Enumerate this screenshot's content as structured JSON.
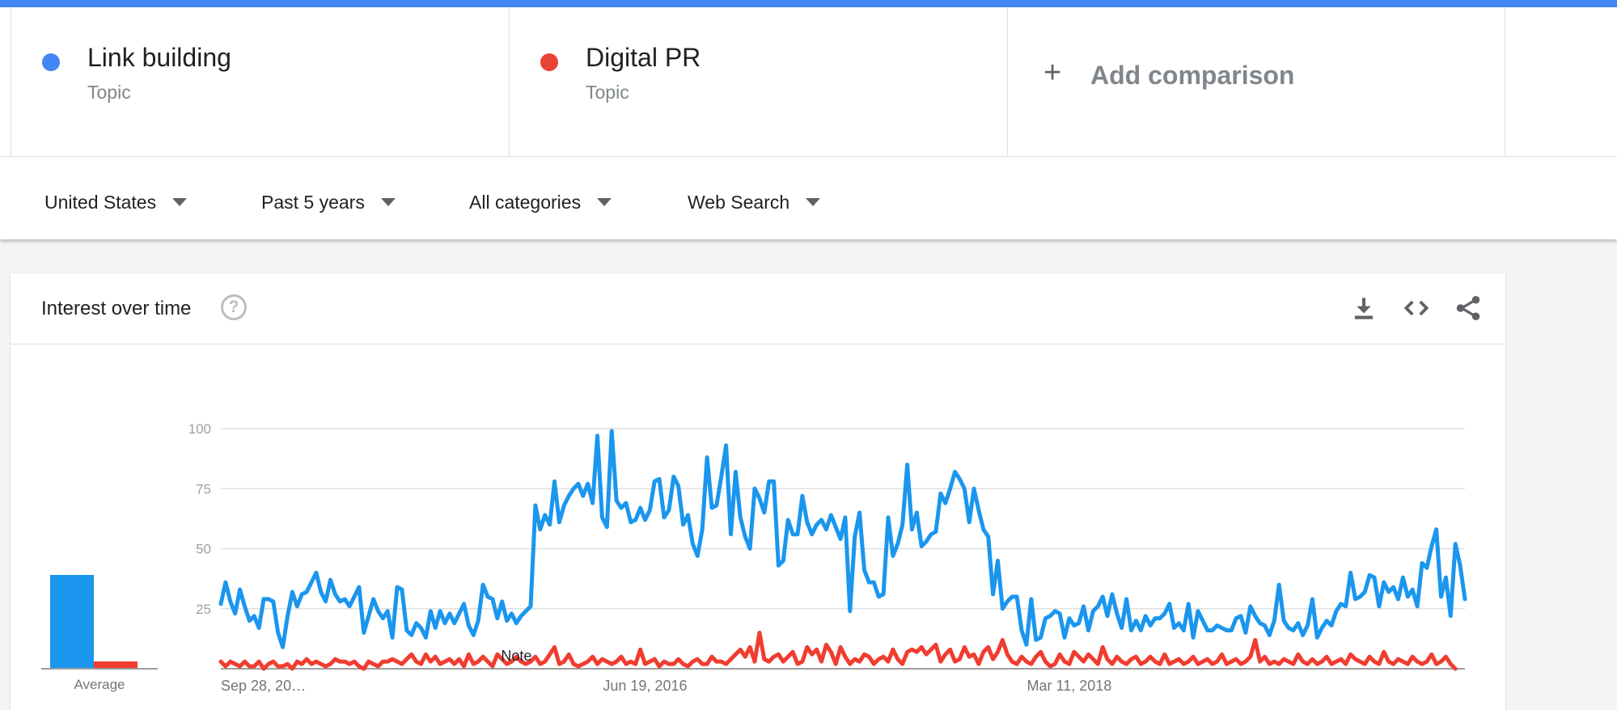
{
  "terms": [
    {
      "name": "Link building",
      "kind": "Topic",
      "color": "#4285f4"
    },
    {
      "name": "Digital PR",
      "kind": "Topic",
      "color": "#ea4335"
    }
  ],
  "add_comparison": {
    "icon": "plus-icon",
    "label": "Add comparison"
  },
  "filters": [
    {
      "label": "United States",
      "icon": "caret-down-icon"
    },
    {
      "label": "Past 5 years",
      "icon": "caret-down-icon"
    },
    {
      "label": "All categories",
      "icon": "caret-down-icon"
    },
    {
      "label": "Web Search",
      "icon": "caret-down-icon"
    }
  ],
  "card": {
    "title": "Interest over time",
    "help_icon": "help-circle-icon",
    "toolbar_icons": [
      "download-icon",
      "embed-code-icon",
      "share-icon"
    ]
  },
  "colors": {
    "accent": "#4285f4",
    "series_blue": "#1a96ee",
    "series_red": "#f13c30"
  },
  "chart_data": {
    "type": "line",
    "x_tick_labels": [
      "Sep 28, 20…",
      "Jun 19, 2016",
      "Mar 11, 2018"
    ],
    "x_tick_positions": [
      0,
      89,
      178
    ],
    "y_ticks": [
      25,
      50,
      75,
      100
    ],
    "ylim": [
      0,
      100
    ],
    "grid": true,
    "annotation": {
      "label": "Note",
      "x": 62
    },
    "average_label": "Average",
    "averages": [
      39,
      3
    ],
    "series": [
      {
        "name": "Link building",
        "color": "#1a96ee",
        "values": [
          27,
          36,
          28,
          23,
          33,
          26,
          20,
          22,
          17,
          29,
          29,
          28,
          15,
          9,
          22,
          32,
          26,
          31,
          32,
          36,
          40,
          32,
          28,
          37,
          31,
          28,
          29,
          26,
          30,
          34,
          15,
          22,
          29,
          24,
          21,
          24,
          13,
          34,
          33,
          16,
          14,
          19,
          17,
          13,
          24,
          17,
          24,
          19,
          23,
          19,
          23,
          27,
          18,
          14,
          20,
          35,
          30,
          29,
          21,
          28,
          20,
          23,
          19,
          22,
          24,
          26,
          68,
          58,
          64,
          60,
          78,
          61,
          68,
          72,
          75,
          77,
          72,
          77,
          69,
          97,
          63,
          59,
          99,
          70,
          67,
          69,
          61,
          62,
          67,
          62,
          66,
          78,
          79,
          63,
          66,
          80,
          76,
          60,
          64,
          52,
          47,
          58,
          88,
          67,
          68,
          80,
          93,
          56,
          82,
          63,
          55,
          50,
          75,
          71,
          65,
          78,
          78,
          43,
          45,
          62,
          56,
          56,
          72,
          61,
          56,
          60,
          62,
          58,
          64,
          59,
          54,
          63,
          24,
          55,
          65,
          41,
          36,
          36,
          30,
          31,
          63,
          47,
          52,
          60,
          85,
          58,
          65,
          51,
          53,
          56,
          57,
          73,
          69,
          75,
          82,
          79,
          75,
          61,
          75,
          66,
          58,
          55,
          31,
          45,
          25,
          28,
          30,
          30,
          16,
          10,
          29,
          12,
          13,
          21,
          22,
          24,
          23,
          13,
          21,
          18,
          19,
          26,
          16,
          24,
          26,
          30,
          22,
          31,
          23,
          17,
          29,
          16,
          20,
          16,
          22,
          18,
          21,
          21,
          23,
          27,
          17,
          19,
          16,
          27,
          13,
          24,
          20,
          16,
          16,
          18,
          17,
          16,
          16,
          21,
          22,
          15,
          26,
          22,
          19,
          18,
          14,
          20,
          35,
          20,
          17,
          16,
          19,
          14,
          18,
          29,
          13,
          17,
          20,
          18,
          24,
          27,
          26,
          40,
          29,
          30,
          32,
          39,
          38,
          26,
          36,
          32,
          34,
          29,
          38,
          30,
          33,
          26,
          44,
          42,
          51,
          58,
          30,
          38,
          22,
          52,
          43,
          29
        ],
        "flat_tail": 0
      },
      {
        "name": "Digital PR",
        "color": "#f13c30",
        "values": [
          3,
          1,
          3,
          2,
          1,
          3,
          1,
          1,
          3,
          0,
          2,
          3,
          1,
          1,
          2,
          0,
          3,
          2,
          4,
          2,
          3,
          2,
          1,
          2,
          4,
          3,
          3,
          2,
          3,
          1,
          0,
          3,
          2,
          1,
          3,
          3,
          4,
          3,
          2,
          4,
          6,
          3,
          2,
          6,
          3,
          5,
          2,
          3,
          4,
          2,
          4,
          1,
          6,
          2,
          3,
          5,
          3,
          1,
          6,
          4,
          2,
          3,
          5,
          3,
          2,
          3,
          5,
          2,
          3,
          6,
          9,
          2,
          3,
          6,
          2,
          1,
          2,
          3,
          5,
          2,
          4,
          3,
          2,
          3,
          5,
          2,
          3,
          2,
          8,
          2,
          3,
          4,
          1,
          3,
          2,
          2,
          4,
          2,
          1,
          3,
          4,
          2,
          2,
          5,
          3,
          3,
          2,
          4,
          6,
          8,
          5,
          9,
          3,
          15,
          4,
          3,
          5,
          6,
          3,
          5,
          7,
          2,
          3,
          9,
          6,
          8,
          3,
          10,
          7,
          2,
          9,
          5,
          2,
          4,
          3,
          6,
          5,
          2,
          4,
          5,
          3,
          8,
          4,
          2,
          7,
          8,
          7,
          9,
          6,
          8,
          10,
          3,
          6,
          8,
          3,
          4,
          9,
          5,
          6,
          2,
          7,
          9,
          4,
          7,
          12,
          6,
          3,
          2,
          5,
          3,
          2,
          5,
          7,
          3,
          1,
          2,
          6,
          3,
          2,
          7,
          5,
          3,
          6,
          4,
          2,
          9,
          4,
          2,
          5,
          3,
          2,
          4,
          5,
          2,
          3,
          5,
          3,
          2,
          6,
          2,
          3,
          4,
          2,
          3,
          5,
          2,
          3,
          4,
          2,
          3,
          6,
          2,
          3,
          4,
          2,
          3,
          5,
          12,
          3,
          5,
          2,
          3,
          2,
          4,
          3,
          2,
          6,
          3,
          2,
          4,
          2,
          3,
          5,
          2,
          3,
          4,
          2,
          6,
          4,
          3,
          2,
          5,
          3,
          2,
          7,
          3,
          2,
          4,
          3,
          2,
          5,
          3,
          2,
          3,
          6,
          2,
          3,
          5,
          2,
          0
        ],
        "flat_tail": 0
      }
    ]
  }
}
